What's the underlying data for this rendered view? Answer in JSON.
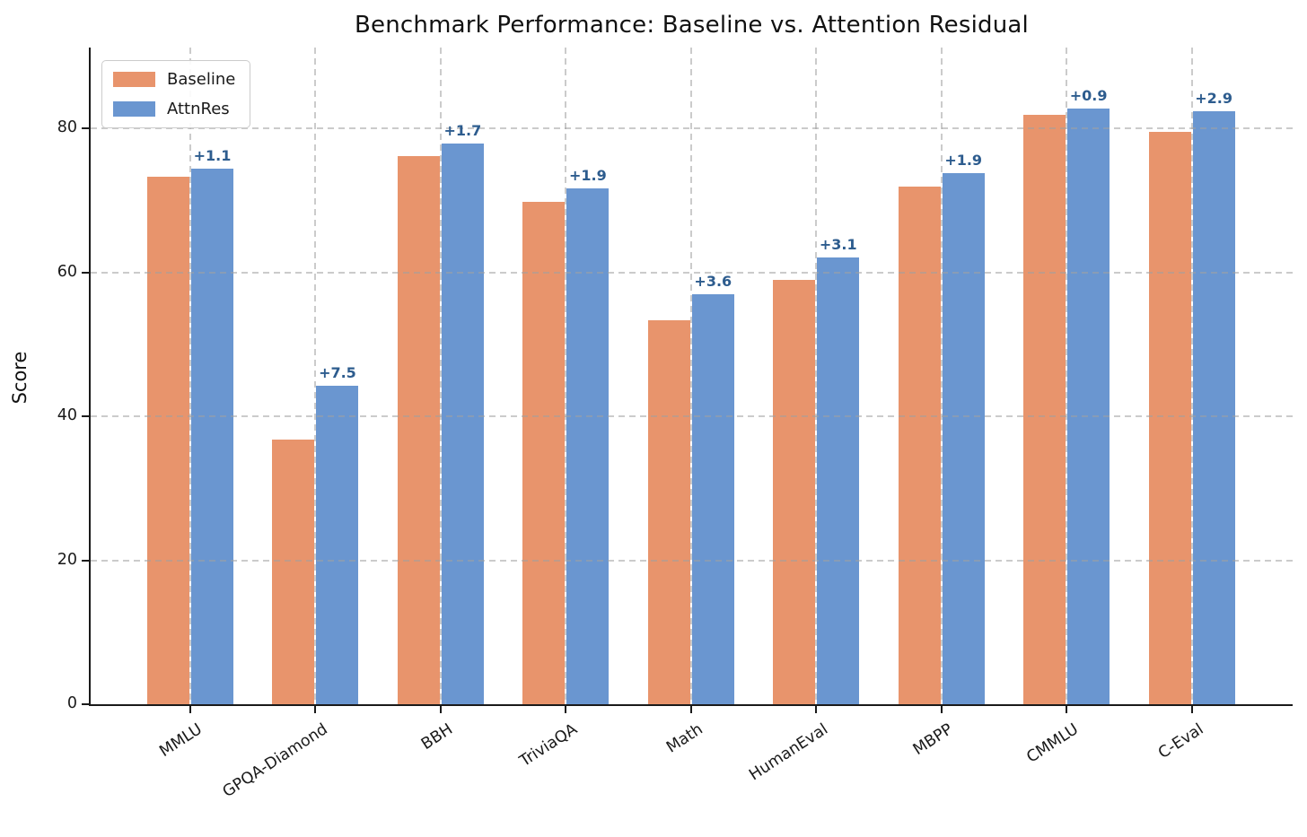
{
  "chart_data": {
    "type": "bar",
    "title": "Benchmark Performance: Baseline vs. Attention Residual",
    "xlabel": "",
    "ylabel": "Score",
    "categories": [
      "MMLU",
      "GPQA-Diamond",
      "BBH",
      "TriviaQA",
      "Math",
      "HumanEval",
      "MBPP",
      "CMMLU",
      "C-Eval"
    ],
    "series": [
      {
        "name": "Baseline",
        "color": "#e8946c",
        "values": [
          73.3,
          36.7,
          76.2,
          69.8,
          53.3,
          58.9,
          71.9,
          81.9,
          79.5
        ]
      },
      {
        "name": "AttnRes",
        "color": "#6a96d0",
        "values": [
          74.4,
          44.2,
          77.9,
          71.7,
          56.9,
          62.0,
          73.8,
          82.8,
          82.4
        ]
      }
    ],
    "delta_labels": [
      "+1.1",
      "+7.5",
      "+1.7",
      "+1.9",
      "+3.6",
      "+3.1",
      "+1.9",
      "+0.9",
      "+2.9"
    ],
    "delta_label_color": "#2d5c8e",
    "yticks": [
      0,
      20,
      40,
      60,
      80
    ],
    "ylim": [
      0,
      91.2
    ],
    "grid": "dashed gray, horizontal and vertical, drawn over bars",
    "legend_position": "upper left",
    "axis_color": "#1a1a1a",
    "background_color": "#ffffff"
  }
}
